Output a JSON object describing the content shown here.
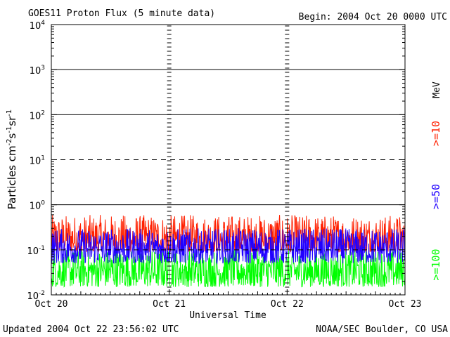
{
  "chart_data": {
    "type": "line",
    "title": "GOES11 Proton Flux (5 minute data)",
    "begin": "Begin: 2004 Oct 20 0000 UTC",
    "xlabel": "Universal Time",
    "ylabel_main": "Particles cm",
    "ylabel_sup1": "-2",
    "ylabel_mid1": "s",
    "ylabel_sup2": "-1",
    "ylabel_mid2": "sr",
    "ylabel_sup3": "-1",
    "y_scale": "log",
    "ylim": [
      0.01,
      10000
    ],
    "y_ticks": [
      {
        "base": "10",
        "exp": "4",
        "value": 10000
      },
      {
        "base": "10",
        "exp": "3",
        "value": 1000
      },
      {
        "base": "10",
        "exp": "2",
        "value": 100
      },
      {
        "base": "10",
        "exp": "1",
        "value": 10
      },
      {
        "base": "10",
        "exp": "0",
        "value": 1
      },
      {
        "base": "10",
        "exp": "-1",
        "value": 0.1
      },
      {
        "base": "10",
        "exp": "-2",
        "value": 0.01
      }
    ],
    "x_ticks": [
      "Oct 20",
      "Oct 21",
      "Oct 22",
      "Oct 23"
    ],
    "xlim_days": [
      0,
      3
    ],
    "mev_label": "MeV",
    "series": [
      {
        "name": ">=10",
        "color": "#ff2000",
        "typical_range": [
          0.09,
          0.6
        ]
      },
      {
        "name": ">=50",
        "color": "#2000ff",
        "typical_range": [
          0.05,
          0.3
        ]
      },
      {
        "name": ">=100",
        "color": "#00ff00",
        "typical_range": [
          0.015,
          0.1
        ]
      }
    ],
    "grid": "solid at 1000, 100, 1; dashed at 10 and 0.1",
    "legend": "right, rotated"
  },
  "footer": {
    "updated": "Updated 2004 Oct 22 23:56:02 UTC",
    "source": "NOAA/SEC Boulder, CO USA"
  }
}
